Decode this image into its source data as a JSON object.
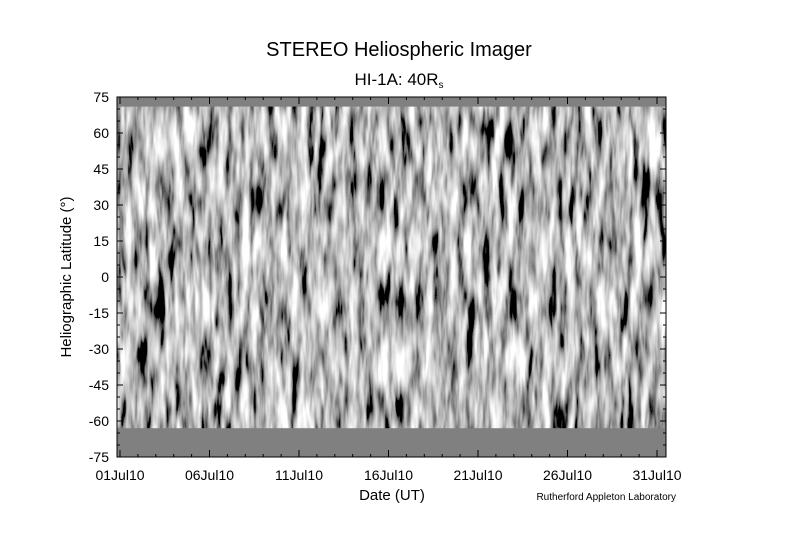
{
  "chart_data": {
    "type": "heatmap",
    "title": "STEREO Heliospheric Imager",
    "subtitle_main": "HI-1A: 40R",
    "subtitle_sub": "s",
    "xlabel": "Date (UT)",
    "ylabel": "Heliographic Latitude (°)",
    "credit": "Rutherford Appleton Laboratory",
    "x_ticks": [
      "01Jul10",
      "06Jul10",
      "11Jul10",
      "16Jul10",
      "21Jul10",
      "26Jul10",
      "31Jul10"
    ],
    "x_range": [
      "2010-07-01",
      "2010-07-31"
    ],
    "y_ticks": [
      75,
      60,
      45,
      30,
      15,
      0,
      -15,
      -30,
      -45,
      -60,
      -75
    ],
    "ylim": [
      -75,
      75
    ],
    "no_data_bands": [
      {
        "from": 71,
        "to": 75
      },
      {
        "from": -75,
        "to": -63
      }
    ],
    "colormap": "grayscale",
    "no_data_color": "#808080"
  }
}
